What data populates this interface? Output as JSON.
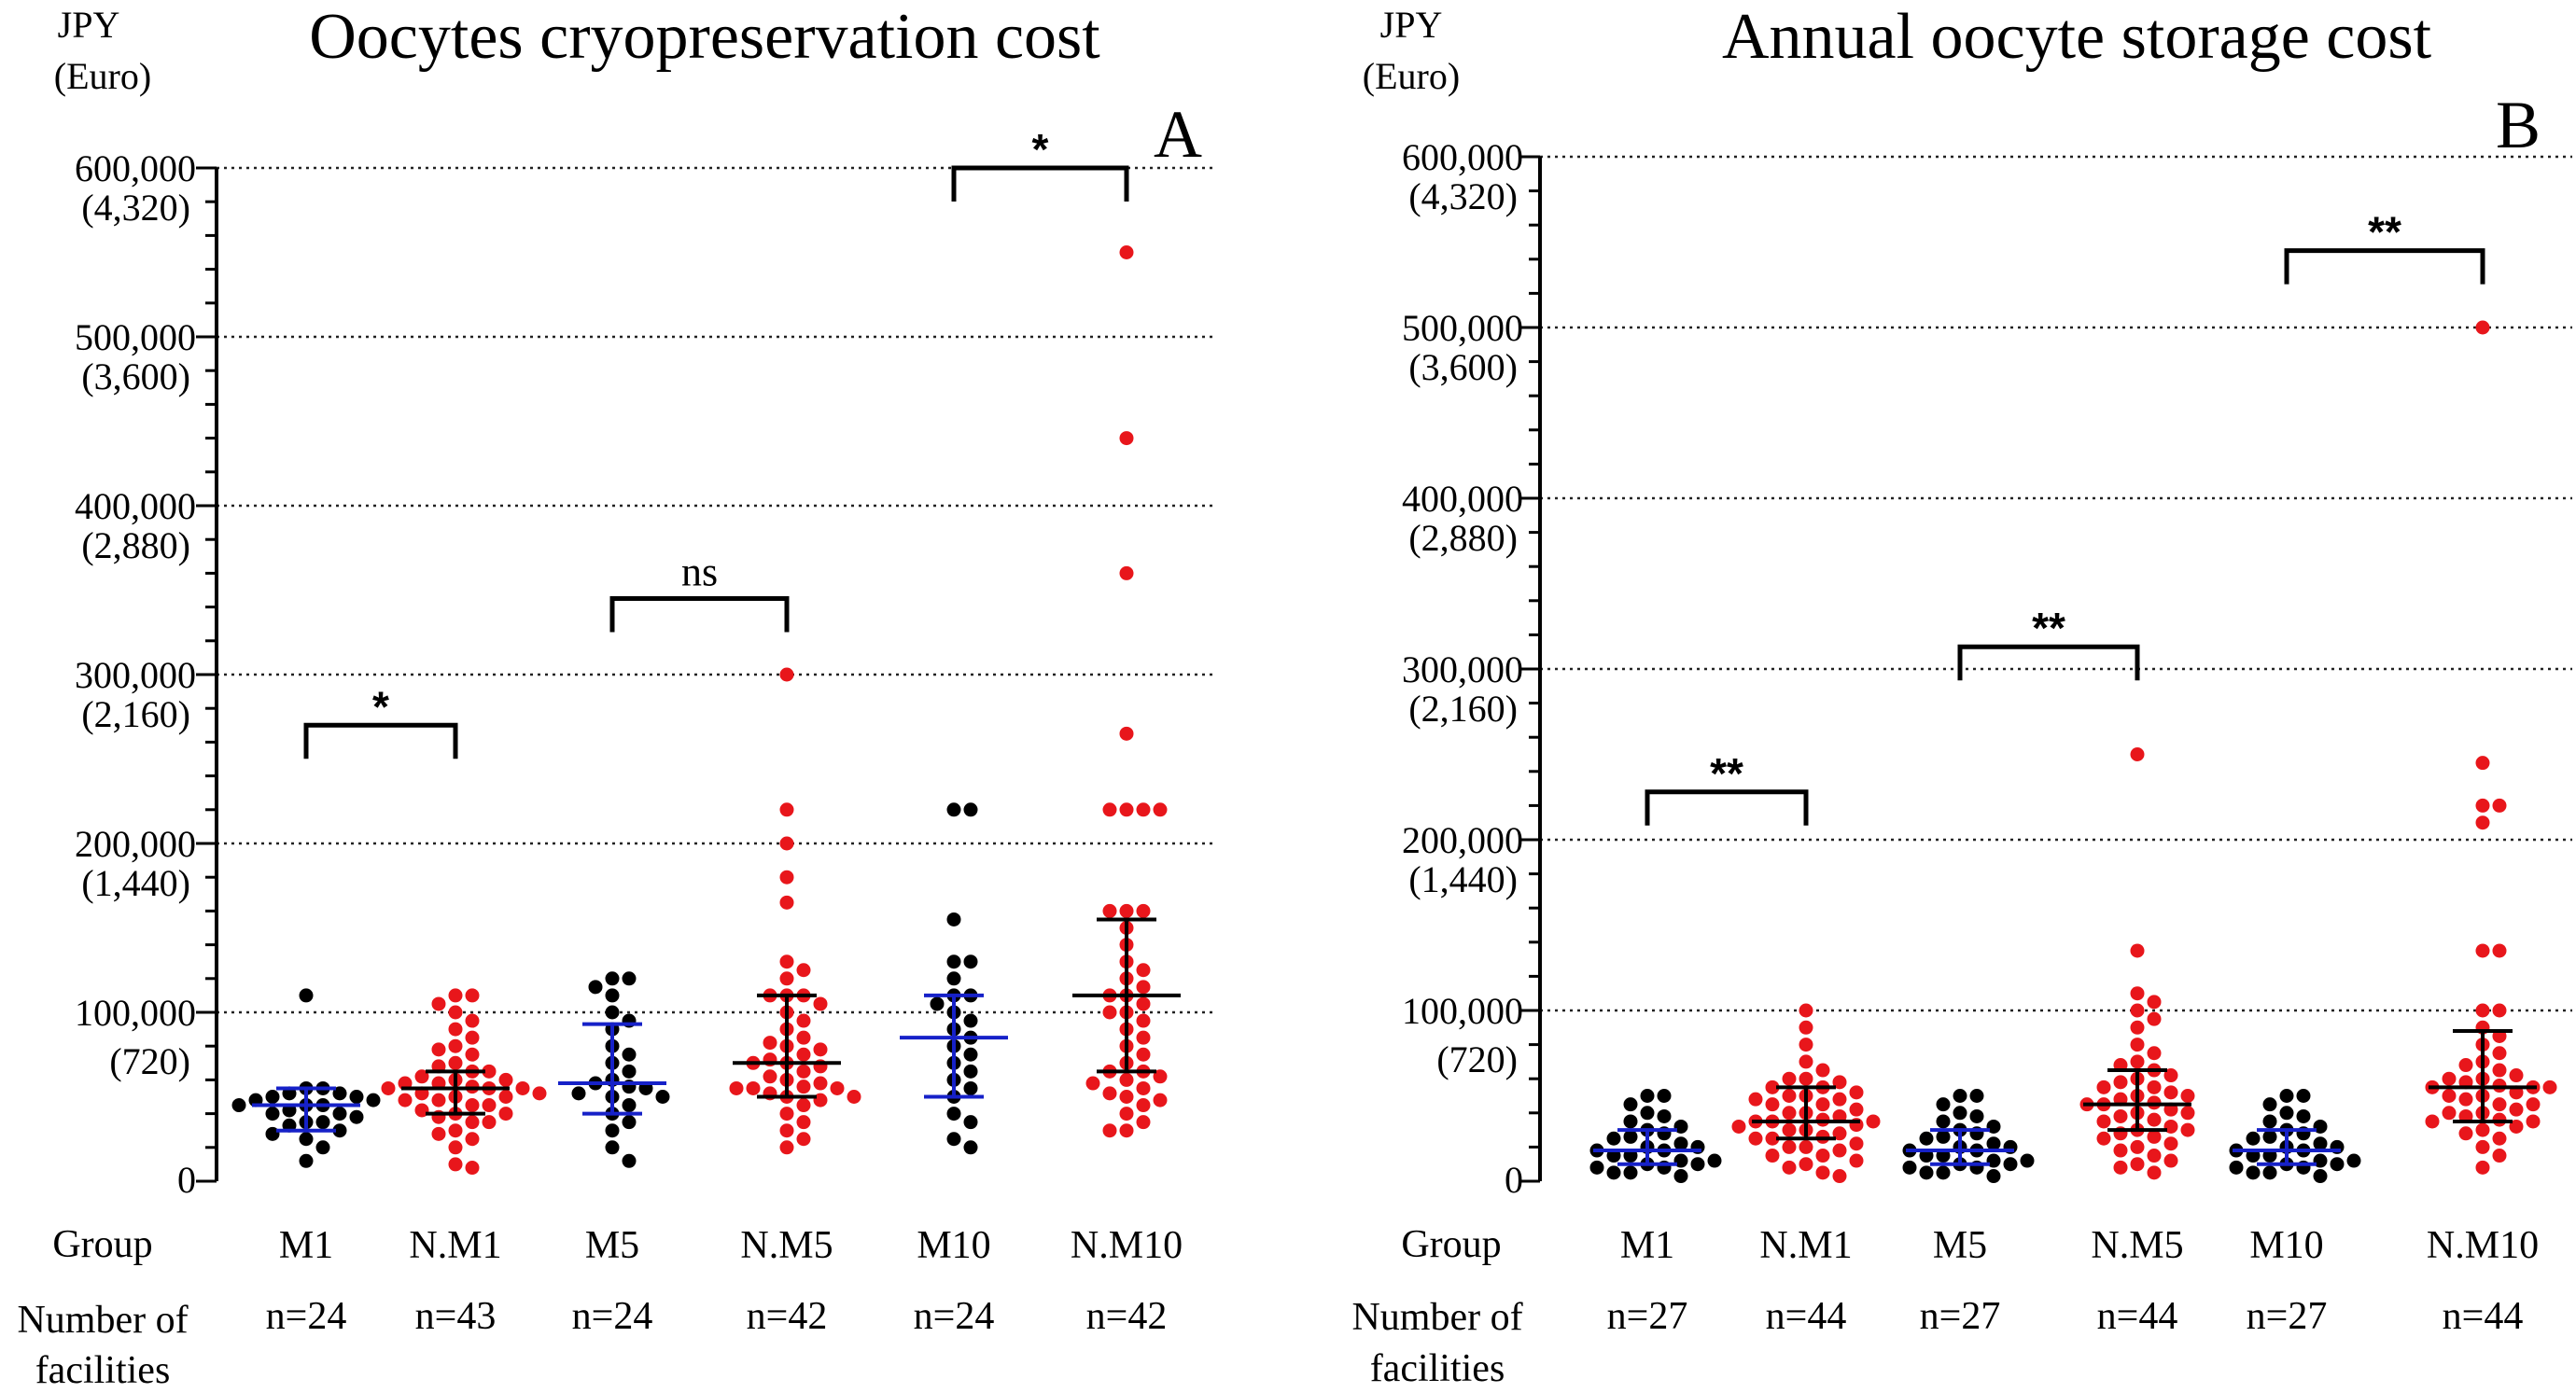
{
  "colors": {
    "black": "#000000",
    "red": "#e8161b",
    "blue": "#1621c8",
    "grid": "#222222"
  },
  "labels": {
    "group": "Group",
    "facilities_line1": "Number of",
    "facilities_line2": "facilities"
  },
  "chart_data": [
    {
      "type": "scatter",
      "panel": "A",
      "title": "Oocytes cryopreservation cost",
      "ylabel_line1": "JPY",
      "ylabel_line2": "(Euro)",
      "ylim": [
        0,
        600000
      ],
      "yticks": [
        {
          "value": 600000,
          "jpy": "600,000",
          "euro": "(4,320)"
        },
        {
          "value": 500000,
          "jpy": "500,000",
          "euro": "(3,600)"
        },
        {
          "value": 400000,
          "jpy": "400,000",
          "euro": "(2,880)"
        },
        {
          "value": 300000,
          "jpy": "300,000",
          "euro": "(2,160)"
        },
        {
          "value": 200000,
          "jpy": "200,000",
          "euro": "(1,440)"
        },
        {
          "value": 100000,
          "jpy": "100,000",
          "euro": "(720)"
        },
        {
          "value": 0,
          "jpy": "0",
          "euro": ""
        }
      ],
      "groups": [
        {
          "name": "M1",
          "n": "n=24",
          "color": "black",
          "median": 45000,
          "q1": 30000,
          "q3": 55000,
          "whisker_color": "blue",
          "values": [
            110000,
            55000,
            55000,
            52000,
            52000,
            50000,
            50000,
            48000,
            48000,
            45000,
            45000,
            45000,
            42000,
            40000,
            40000,
            38000,
            35000,
            35000,
            33000,
            30000,
            28000,
            25000,
            20000,
            12000
          ]
        },
        {
          "name": "N.M1",
          "n": "n=43",
          "color": "red",
          "median": 55000,
          "q1": 40000,
          "q3": 65000,
          "whisker_color": "black",
          "values": [
            110000,
            110000,
            105000,
            100000,
            95000,
            90000,
            85000,
            80000,
            78000,
            75000,
            70000,
            68000,
            65000,
            65000,
            62000,
            60000,
            60000,
            58000,
            58000,
            56000,
            55000,
            55000,
            55000,
            52000,
            52000,
            50000,
            50000,
            48000,
            48000,
            45000,
            45000,
            42000,
            40000,
            40000,
            38000,
            35000,
            35000,
            30000,
            28000,
            25000,
            20000,
            10000,
            8000
          ]
        },
        {
          "name": "M5",
          "n": "n=24",
          "color": "black",
          "median": 58000,
          "q1": 40000,
          "q3": 93000,
          "whisker_color": "blue",
          "values": [
            120000,
            120000,
            115000,
            110000,
            100000,
            95000,
            90000,
            80000,
            75000,
            70000,
            65000,
            60000,
            58000,
            56000,
            55000,
            52000,
            50000,
            50000,
            45000,
            40000,
            35000,
            30000,
            20000,
            12000
          ]
        },
        {
          "name": "N.M5",
          "n": "n=42",
          "color": "red",
          "median": 70000,
          "q1": 50000,
          "q3": 110000,
          "whisker_color": "black",
          "values": [
            300000,
            220000,
            200000,
            180000,
            165000,
            130000,
            125000,
            120000,
            110000,
            110000,
            110000,
            105000,
            100000,
            95000,
            90000,
            85000,
            82000,
            80000,
            78000,
            75000,
            72000,
            70000,
            70000,
            68000,
            65000,
            62000,
            60000,
            58000,
            56000,
            55000,
            55000,
            55000,
            52000,
            50000,
            50000,
            48000,
            45000,
            40000,
            35000,
            30000,
            25000,
            20000
          ]
        },
        {
          "name": "M10",
          "n": "n=24",
          "color": "black",
          "median": 85000,
          "q1": 50000,
          "q3": 110000,
          "whisker_color": "blue",
          "values": [
            220000,
            220000,
            155000,
            130000,
            130000,
            120000,
            110000,
            110000,
            105000,
            100000,
            95000,
            90000,
            85000,
            80000,
            75000,
            70000,
            65000,
            60000,
            55000,
            50000,
            40000,
            35000,
            25000,
            20000
          ]
        },
        {
          "name": "N.M10",
          "n": "n=42",
          "color": "red",
          "median": 110000,
          "q1": 65000,
          "q3": 155000,
          "whisker_color": "black",
          "values": [
            550000,
            440000,
            360000,
            265000,
            220000,
            220000,
            220000,
            220000,
            160000,
            160000,
            160000,
            150000,
            140000,
            130000,
            125000,
            120000,
            115000,
            110000,
            110000,
            105000,
            100000,
            100000,
            95000,
            90000,
            85000,
            80000,
            75000,
            70000,
            65000,
            65000,
            62000,
            60000,
            58000,
            55000,
            52000,
            50000,
            48000,
            45000,
            40000,
            35000,
            30000,
            30000
          ]
        }
      ],
      "comparisons": [
        {
          "from": "M1",
          "to": "N.M1",
          "label": "*",
          "y": 270000
        },
        {
          "from": "M5",
          "to": "N.M5",
          "label": "ns",
          "y": 345000
        },
        {
          "from": "M10",
          "to": "N.M10",
          "label": "*",
          "y": 600000
        }
      ]
    },
    {
      "type": "scatter",
      "panel": "B",
      "title": "Annual oocyte storage cost",
      "ylabel_line1": "JPY",
      "ylabel_line2": "(Euro)",
      "ylim": [
        0,
        600000
      ],
      "yticks": [
        {
          "value": 600000,
          "jpy": "600,000",
          "euro": "(4,320)"
        },
        {
          "value": 500000,
          "jpy": "500,000",
          "euro": "(3,600)"
        },
        {
          "value": 400000,
          "jpy": "400,000",
          "euro": "(2,880)"
        },
        {
          "value": 300000,
          "jpy": "300,000",
          "euro": "(2,160)"
        },
        {
          "value": 200000,
          "jpy": "200,000",
          "euro": "(1,440)"
        },
        {
          "value": 100000,
          "jpy": "100,000",
          "euro": "(720)"
        },
        {
          "value": 0,
          "jpy": "0",
          "euro": ""
        }
      ],
      "groups": [
        {
          "name": "M1",
          "n": "n=27",
          "color": "black",
          "median": 18000,
          "q1": 10000,
          "q3": 30000,
          "whisker_color": "blue",
          "values": [
            50000,
            50000,
            45000,
            40000,
            38000,
            35000,
            32000,
            30000,
            28000,
            26000,
            25000,
            22000,
            20000,
            20000,
            18000,
            18000,
            15000,
            15000,
            12000,
            12000,
            10000,
            10000,
            8000,
            8000,
            5000,
            5000,
            3000
          ]
        },
        {
          "name": "N.M1",
          "n": "n=44",
          "color": "red",
          "median": 35000,
          "q1": 25000,
          "q3": 55000,
          "whisker_color": "black",
          "values": [
            100000,
            90000,
            80000,
            70000,
            65000,
            60000,
            60000,
            58000,
            55000,
            55000,
            52000,
            50000,
            50000,
            48000,
            48000,
            45000,
            45000,
            42000,
            40000,
            40000,
            38000,
            36000,
            35000,
            35000,
            35000,
            33000,
            32000,
            30000,
            30000,
            28000,
            26000,
            25000,
            25000,
            22000,
            20000,
            20000,
            18000,
            15000,
            15000,
            12000,
            10000,
            8000,
            5000,
            3000
          ]
        },
        {
          "name": "M5",
          "n": "n=27",
          "color": "black",
          "median": 18000,
          "q1": 10000,
          "q3": 30000,
          "whisker_color": "blue",
          "values": [
            50000,
            50000,
            45000,
            40000,
            38000,
            35000,
            32000,
            30000,
            28000,
            26000,
            25000,
            22000,
            20000,
            20000,
            18000,
            18000,
            15000,
            15000,
            12000,
            12000,
            10000,
            10000,
            8000,
            8000,
            5000,
            5000,
            3000
          ]
        },
        {
          "name": "N.M5",
          "n": "n=44",
          "color": "red",
          "median": 45000,
          "q1": 30000,
          "q3": 65000,
          "whisker_color": "black",
          "values": [
            250000,
            135000,
            110000,
            105000,
            100000,
            95000,
            90000,
            80000,
            75000,
            70000,
            68000,
            65000,
            62000,
            60000,
            58000,
            55000,
            55000,
            52000,
            50000,
            50000,
            48000,
            46000,
            45000,
            45000,
            42000,
            40000,
            40000,
            38000,
            36000,
            35000,
            32000,
            30000,
            30000,
            28000,
            26000,
            25000,
            22000,
            20000,
            18000,
            15000,
            12000,
            10000,
            8000,
            5000
          ]
        },
        {
          "name": "M10",
          "n": "n=27",
          "color": "black",
          "median": 18000,
          "q1": 10000,
          "q3": 30000,
          "whisker_color": "blue",
          "values": [
            50000,
            50000,
            45000,
            40000,
            38000,
            35000,
            32000,
            30000,
            28000,
            26000,
            25000,
            22000,
            20000,
            20000,
            18000,
            18000,
            15000,
            15000,
            12000,
            12000,
            10000,
            10000,
            8000,
            8000,
            5000,
            5000,
            3000
          ]
        },
        {
          "name": "N.M10",
          "n": "n=44",
          "color": "red",
          "median": 55000,
          "q1": 35000,
          "q3": 88000,
          "whisker_color": "black",
          "values": [
            500000,
            245000,
            220000,
            220000,
            210000,
            135000,
            135000,
            100000,
            100000,
            90000,
            85000,
            80000,
            75000,
            70000,
            68000,
            65000,
            62000,
            60000,
            60000,
            58000,
            56000,
            55000,
            55000,
            55000,
            52000,
            50000,
            50000,
            48000,
            45000,
            45000,
            42000,
            40000,
            40000,
            38000,
            36000,
            35000,
            35000,
            32000,
            30000,
            28000,
            25000,
            20000,
            15000,
            8000
          ]
        }
      ],
      "comparisons": [
        {
          "from": "M1",
          "to": "N.M1",
          "label": "**",
          "y": 228000
        },
        {
          "from": "M5",
          "to": "N.M5",
          "label": "**",
          "y": 313000
        },
        {
          "from": "M10",
          "to": "N.M10",
          "label": "**",
          "y": 545000
        }
      ]
    }
  ]
}
